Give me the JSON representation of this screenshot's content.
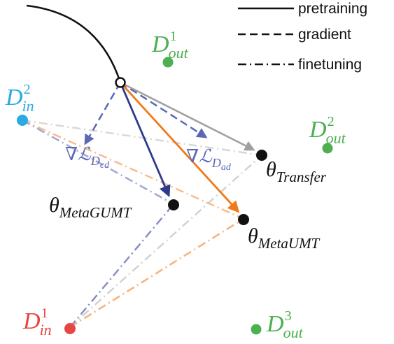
{
  "legend": {
    "pretraining": "pretraining",
    "gradient": "gradient",
    "finetuning": "finetuning"
  },
  "labels": {
    "d_out_1": {
      "main": "D",
      "sup": "1",
      "sub": "out"
    },
    "d_out_2": {
      "main": "D",
      "sup": "2",
      "sub": "out"
    },
    "d_out_3": {
      "main": "D",
      "sup": "3",
      "sub": "out"
    },
    "d_in_1": {
      "main": "D",
      "sup": "1",
      "sub": "in"
    },
    "d_in_2": {
      "main": "D",
      "sup": "2",
      "sub": "in"
    },
    "theta_transfer": {
      "main": "θ",
      "sub": "Transfer"
    },
    "theta_metagumt": {
      "main": "θ",
      "sub": "MetaGUMT"
    },
    "theta_metaumt": {
      "main": "θ",
      "sub": "MetaUMT"
    },
    "grad_cd": {
      "main": "∇ℒ",
      "sub": "D",
      "subsub": "cd"
    },
    "grad_ad": {
      "main": "∇ℒ",
      "sub": "D",
      "subsub": "ad"
    }
  },
  "colors": {
    "out_domain": "#4caf50",
    "d_in_1": "#e84545",
    "d_in_2": "#29abe2",
    "metagumt": "#2e3a8c",
    "gradient": "#5b69b3",
    "metaumt": "#f07a1a",
    "transfer": "#a0a0a0"
  }
}
